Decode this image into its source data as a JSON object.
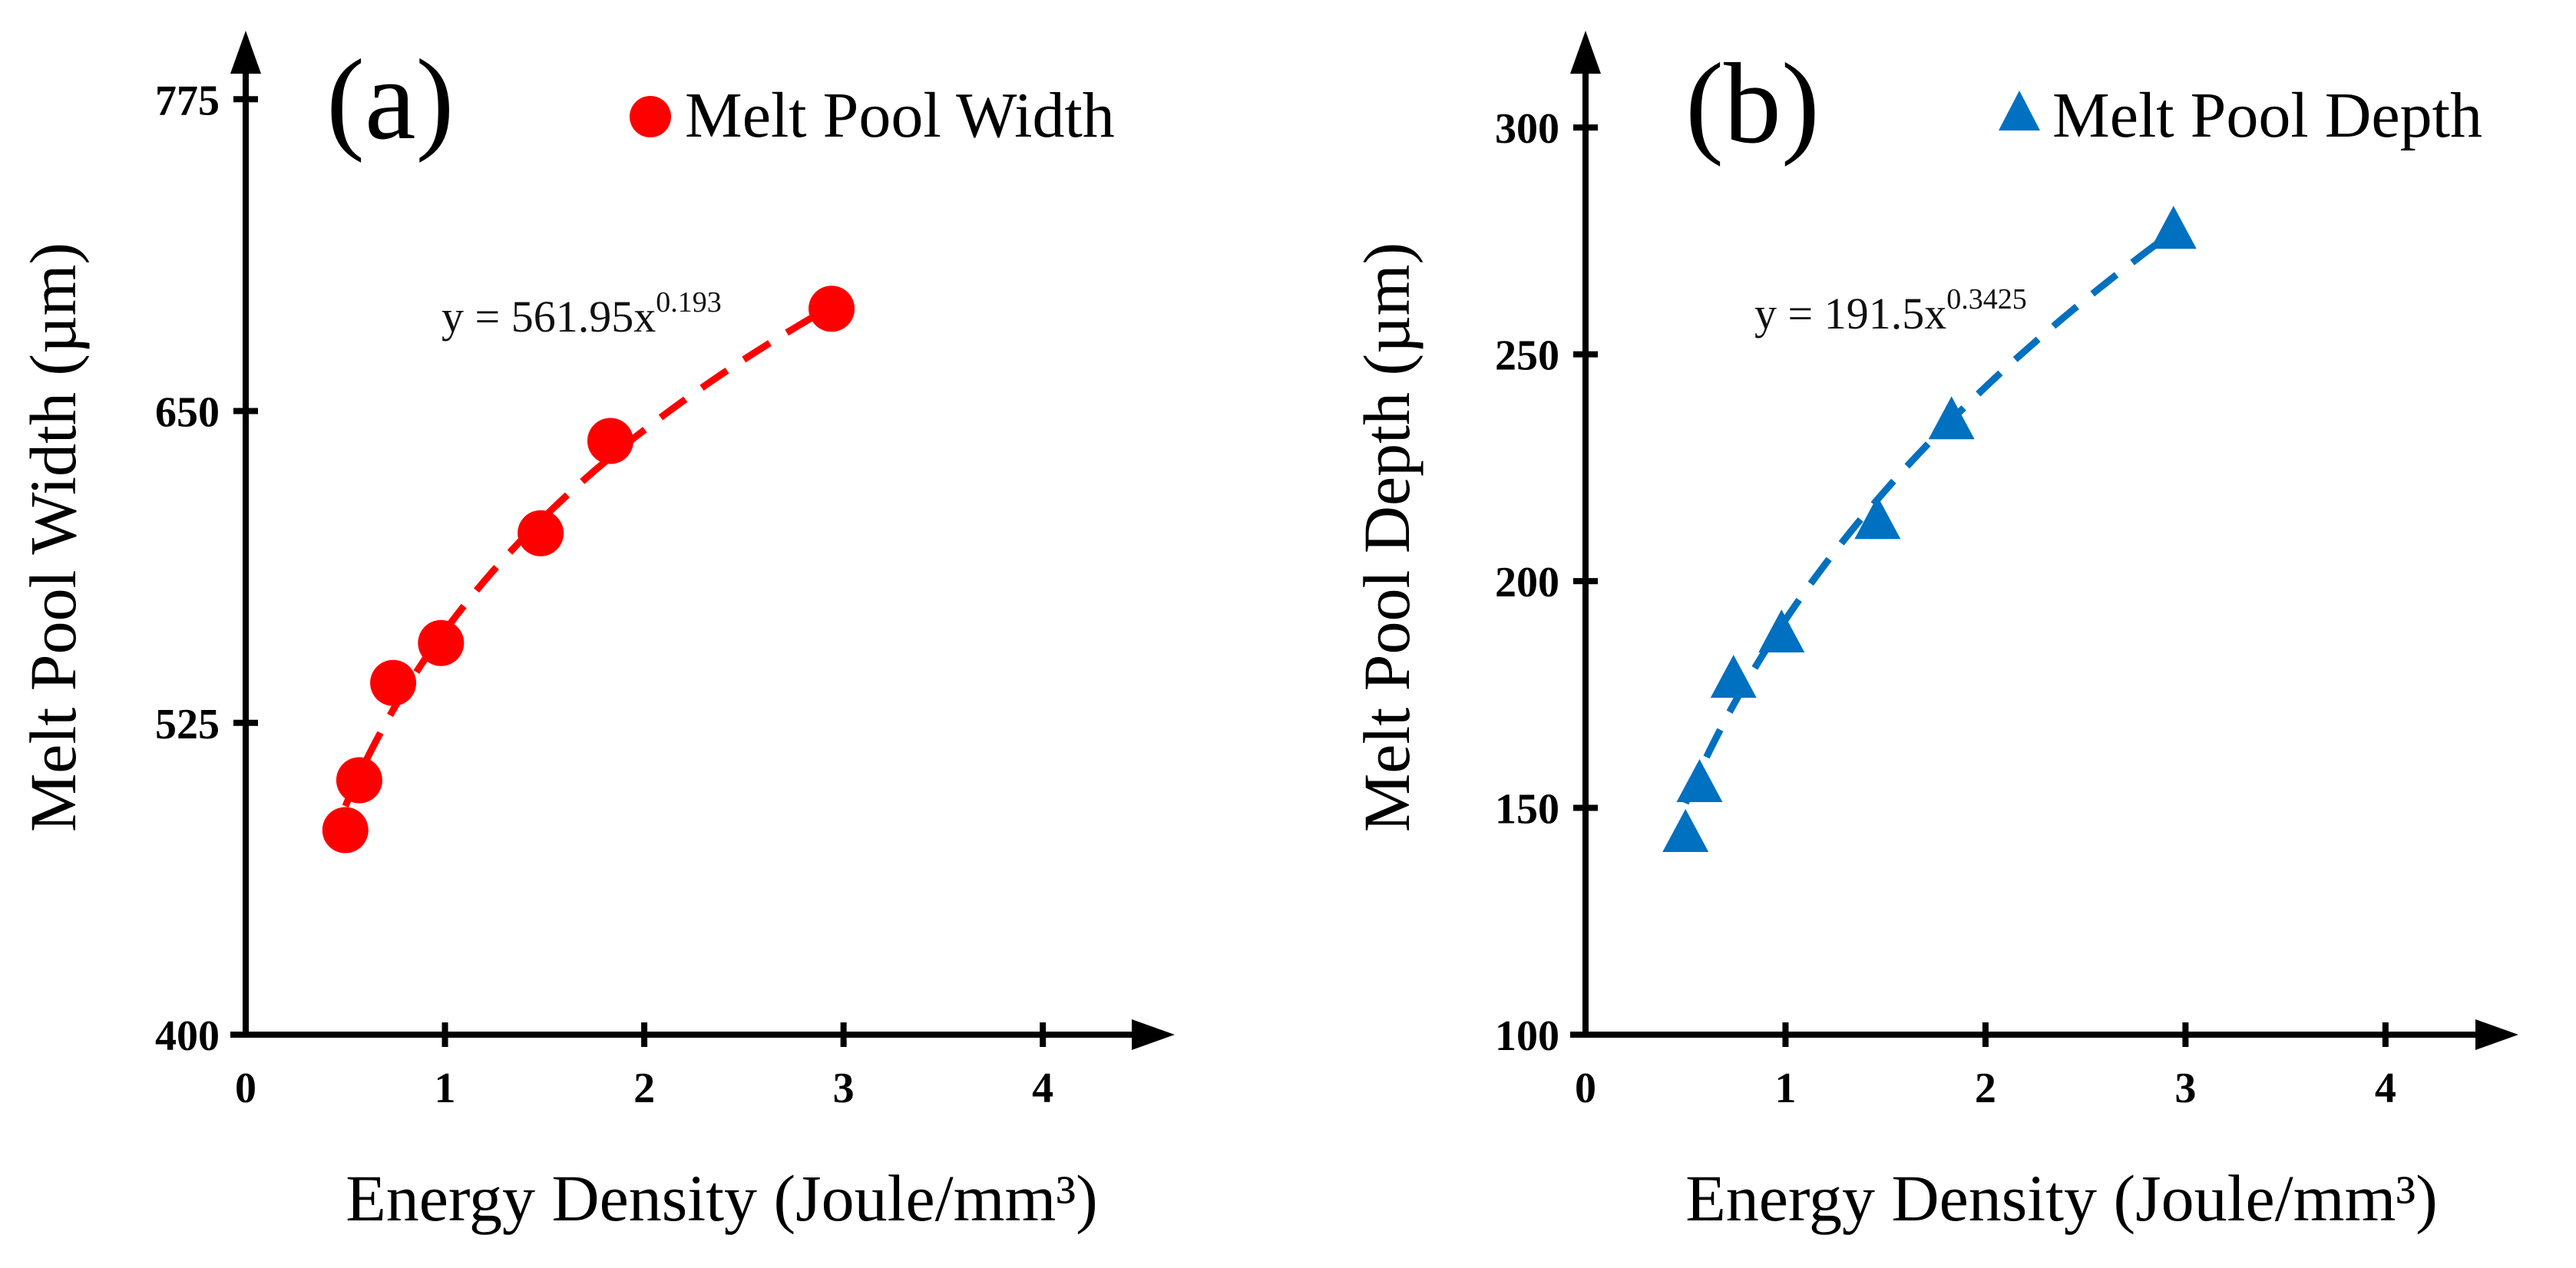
{
  "chart_data": [
    {
      "type": "scatter",
      "panel_label": "(a)",
      "xlabel": "Energy Density (Joule/mm³)",
      "ylabel": "Melt Pool Width (µm)",
      "xlim": [
        0,
        4.4
      ],
      "ylim": [
        400,
        800
      ],
      "xticks": [
        "0",
        "1",
        "2",
        "3",
        "4"
      ],
      "yticks": [
        "400",
        "525",
        "650",
        "775"
      ],
      "legend": "Melt Pool Width",
      "legend_position": "top-right",
      "marker": "circle",
      "color": "#ff0000",
      "x": [
        0.5,
        0.57,
        0.74,
        0.98,
        1.48,
        1.83,
        2.94
      ],
      "y": [
        482,
        502,
        541,
        557,
        601,
        638,
        691
      ],
      "trendline": {
        "type": "power",
        "a": 561.95,
        "b": 0.193,
        "equation_prefix": "y = 561.95x",
        "equation_exponent": "0.193"
      }
    },
    {
      "type": "scatter",
      "panel_label": "(b)",
      "xlabel": "Energy Density (Joule/mm³)",
      "ylabel": "Melt Pool Depth (µm)",
      "xlim": [
        0,
        4.3
      ],
      "ylim": [
        100,
        320
      ],
      "xticks": [
        "0",
        "1",
        "2",
        "3",
        "4"
      ],
      "yticks": [
        "100",
        "150",
        "200",
        "250",
        "300"
      ],
      "legend": "Melt Pool Depth",
      "legend_position": "top-right",
      "marker": "triangle",
      "color": "#0070c0",
      "x": [
        0.5,
        0.57,
        0.74,
        0.98,
        1.46,
        1.83,
        2.94
      ],
      "y": [
        144,
        155,
        178,
        188,
        213,
        235,
        277
      ],
      "trendline": {
        "type": "power",
        "a": 191.5,
        "b": 0.3425,
        "equation_prefix": "y = 191.5x",
        "equation_exponent": "0.3425"
      }
    }
  ]
}
